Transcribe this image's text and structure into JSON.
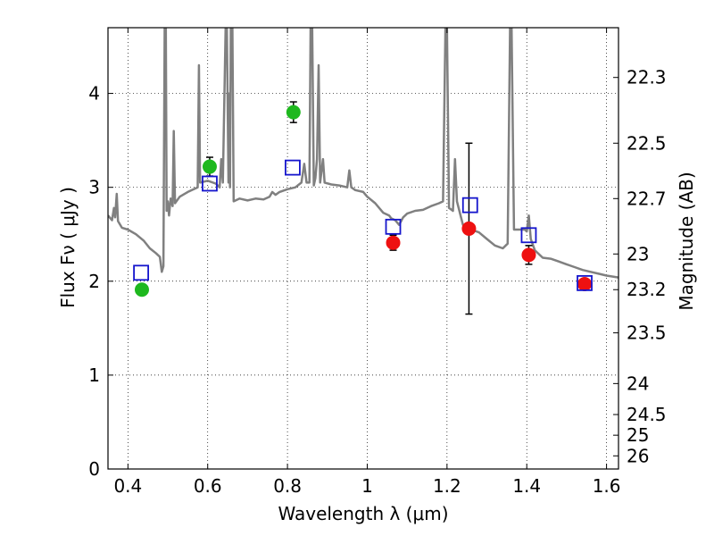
{
  "chart_data": {
    "type": "scatter",
    "xlabel": "Wavelength  λ (μm)",
    "ylabel": "Flux  Fν  ( μJy )",
    "y2label": "Magnitude (AB)",
    "xlim": [
      0.35,
      1.63
    ],
    "ylim": [
      0,
      4.7
    ],
    "grid": true,
    "grid_style": "dotted",
    "x_ticks": [
      0.4,
      0.6,
      0.8,
      1.0,
      1.2,
      1.4,
      1.6
    ],
    "x_tick_labels": [
      "0.4",
      "0.6",
      "0.8",
      "1",
      "1.2",
      "1.4",
      "1.6"
    ],
    "y_ticks": [
      0,
      1,
      2,
      3,
      4
    ],
    "y_tick_labels": [
      "0",
      "1",
      "2",
      "3",
      "4"
    ],
    "y2_ticks": [
      {
        "label": "22.3",
        "flux": 4.17
      },
      {
        "label": "22.5",
        "flux": 3.47
      },
      {
        "label": "22.7",
        "flux": 2.88
      },
      {
        "label": "23",
        "flux": 2.29
      },
      {
        "label": "23.2",
        "flux": 1.91
      },
      {
        "label": "23.5",
        "flux": 1.45
      },
      {
        "label": "24",
        "flux": 0.91
      },
      {
        "label": "24.5",
        "flux": 0.58
      },
      {
        "label": "25",
        "flux": 0.36
      },
      {
        "label": "26",
        "flux": 0.14
      }
    ],
    "series": [
      {
        "marker": "circle",
        "color": "#1eb81e",
        "points": [
          {
            "x": 0.435,
            "y": 1.91,
            "err": 0.05
          },
          {
            "x": 0.605,
            "y": 3.22,
            "err": 0.1
          },
          {
            "x": 0.815,
            "y": 3.8,
            "err": 0.11
          }
        ]
      },
      {
        "marker": "circle",
        "color": "#ee1111",
        "points": [
          {
            "x": 1.065,
            "y": 2.41,
            "err": 0.08
          },
          {
            "x": 1.255,
            "y": 2.56,
            "err": 0.91
          },
          {
            "x": 1.405,
            "y": 2.28,
            "err": 0.1
          },
          {
            "x": 1.545,
            "y": 1.97,
            "err": 0.0
          }
        ]
      },
      {
        "marker": "square",
        "color": "#1515cc",
        "points": [
          {
            "x": 0.433,
            "y": 2.09
          },
          {
            "x": 0.605,
            "y": 3.04
          },
          {
            "x": 0.813,
            "y": 3.21
          },
          {
            "x": 1.065,
            "y": 2.58
          },
          {
            "x": 1.258,
            "y": 2.81
          },
          {
            "x": 1.405,
            "y": 2.49
          },
          {
            "x": 1.545,
            "y": 1.98
          }
        ]
      },
      {
        "type": "line",
        "color": "#808080",
        "points": [
          [
            0.35,
            2.7
          ],
          [
            0.36,
            2.65
          ],
          [
            0.365,
            2.78
          ],
          [
            0.368,
            2.68
          ],
          [
            0.372,
            2.93
          ],
          [
            0.375,
            2.64
          ],
          [
            0.385,
            2.57
          ],
          [
            0.4,
            2.55
          ],
          [
            0.42,
            2.5
          ],
          [
            0.44,
            2.43
          ],
          [
            0.455,
            2.35
          ],
          [
            0.47,
            2.3
          ],
          [
            0.48,
            2.26
          ],
          [
            0.485,
            2.1
          ],
          [
            0.489,
            2.16
          ],
          [
            0.492,
            4.7
          ],
          [
            0.495,
            4.7
          ],
          [
            0.497,
            2.75
          ],
          [
            0.5,
            2.85
          ],
          [
            0.503,
            2.7
          ],
          [
            0.507,
            2.88
          ],
          [
            0.512,
            2.8
          ],
          [
            0.515,
            3.6
          ],
          [
            0.518,
            2.83
          ],
          [
            0.53,
            2.9
          ],
          [
            0.55,
            2.95
          ],
          [
            0.575,
            3.0
          ],
          [
            0.578,
            4.3
          ],
          [
            0.581,
            3.05
          ],
          [
            0.6,
            3.07
          ],
          [
            0.62,
            3.04
          ],
          [
            0.63,
            3.0
          ],
          [
            0.634,
            3.3
          ],
          [
            0.638,
            3.05
          ],
          [
            0.645,
            4.7
          ],
          [
            0.648,
            4.7
          ],
          [
            0.652,
            3.05
          ],
          [
            0.654,
            4.0
          ],
          [
            0.656,
            3.0
          ],
          [
            0.658,
            4.7
          ],
          [
            0.662,
            4.7
          ],
          [
            0.665,
            2.85
          ],
          [
            0.68,
            2.88
          ],
          [
            0.7,
            2.86
          ],
          [
            0.72,
            2.88
          ],
          [
            0.74,
            2.87
          ],
          [
            0.755,
            2.9
          ],
          [
            0.762,
            2.95
          ],
          [
            0.77,
            2.92
          ],
          [
            0.78,
            2.95
          ],
          [
            0.8,
            2.98
          ],
          [
            0.82,
            3.0
          ],
          [
            0.835,
            3.05
          ],
          [
            0.842,
            3.25
          ],
          [
            0.848,
            3.05
          ],
          [
            0.855,
            3.05
          ],
          [
            0.858,
            4.7
          ],
          [
            0.862,
            4.7
          ],
          [
            0.866,
            3.02
          ],
          [
            0.87,
            3.1
          ],
          [
            0.874,
            3.3
          ],
          [
            0.878,
            4.3
          ],
          [
            0.882,
            3.05
          ],
          [
            0.889,
            3.3
          ],
          [
            0.893,
            3.05
          ],
          [
            0.91,
            3.03
          ],
          [
            0.93,
            3.02
          ],
          [
            0.95,
            3.0
          ],
          [
            0.955,
            3.18
          ],
          [
            0.96,
            3.0
          ],
          [
            0.97,
            2.97
          ],
          [
            0.99,
            2.95
          ],
          [
            1.0,
            2.9
          ],
          [
            1.02,
            2.83
          ],
          [
            1.04,
            2.73
          ],
          [
            1.055,
            2.7
          ],
          [
            1.06,
            2.67
          ],
          [
            1.07,
            2.65
          ],
          [
            1.08,
            2.6
          ],
          [
            1.09,
            2.68
          ],
          [
            1.1,
            2.72
          ],
          [
            1.12,
            2.75
          ],
          [
            1.14,
            2.76
          ],
          [
            1.16,
            2.8
          ],
          [
            1.18,
            2.83
          ],
          [
            1.19,
            2.85
          ],
          [
            1.196,
            4.7
          ],
          [
            1.2,
            4.7
          ],
          [
            1.205,
            2.78
          ],
          [
            1.215,
            2.75
          ],
          [
            1.22,
            3.3
          ],
          [
            1.225,
            2.85
          ],
          [
            1.24,
            2.6
          ],
          [
            1.26,
            2.55
          ],
          [
            1.28,
            2.52
          ],
          [
            1.3,
            2.45
          ],
          [
            1.32,
            2.38
          ],
          [
            1.34,
            2.35
          ],
          [
            1.352,
            2.4
          ],
          [
            1.358,
            4.7
          ],
          [
            1.362,
            4.7
          ],
          [
            1.368,
            2.55
          ],
          [
            1.38,
            2.55
          ],
          [
            1.395,
            2.55
          ],
          [
            1.4,
            2.53
          ],
          [
            1.405,
            2.7
          ],
          [
            1.41,
            2.45
          ],
          [
            1.42,
            2.33
          ],
          [
            1.44,
            2.25
          ],
          [
            1.46,
            2.24
          ],
          [
            1.48,
            2.21
          ],
          [
            1.5,
            2.18
          ],
          [
            1.52,
            2.15
          ],
          [
            1.54,
            2.12
          ],
          [
            1.56,
            2.1
          ],
          [
            1.58,
            2.08
          ],
          [
            1.6,
            2.06
          ],
          [
            1.63,
            2.04
          ]
        ]
      }
    ]
  }
}
